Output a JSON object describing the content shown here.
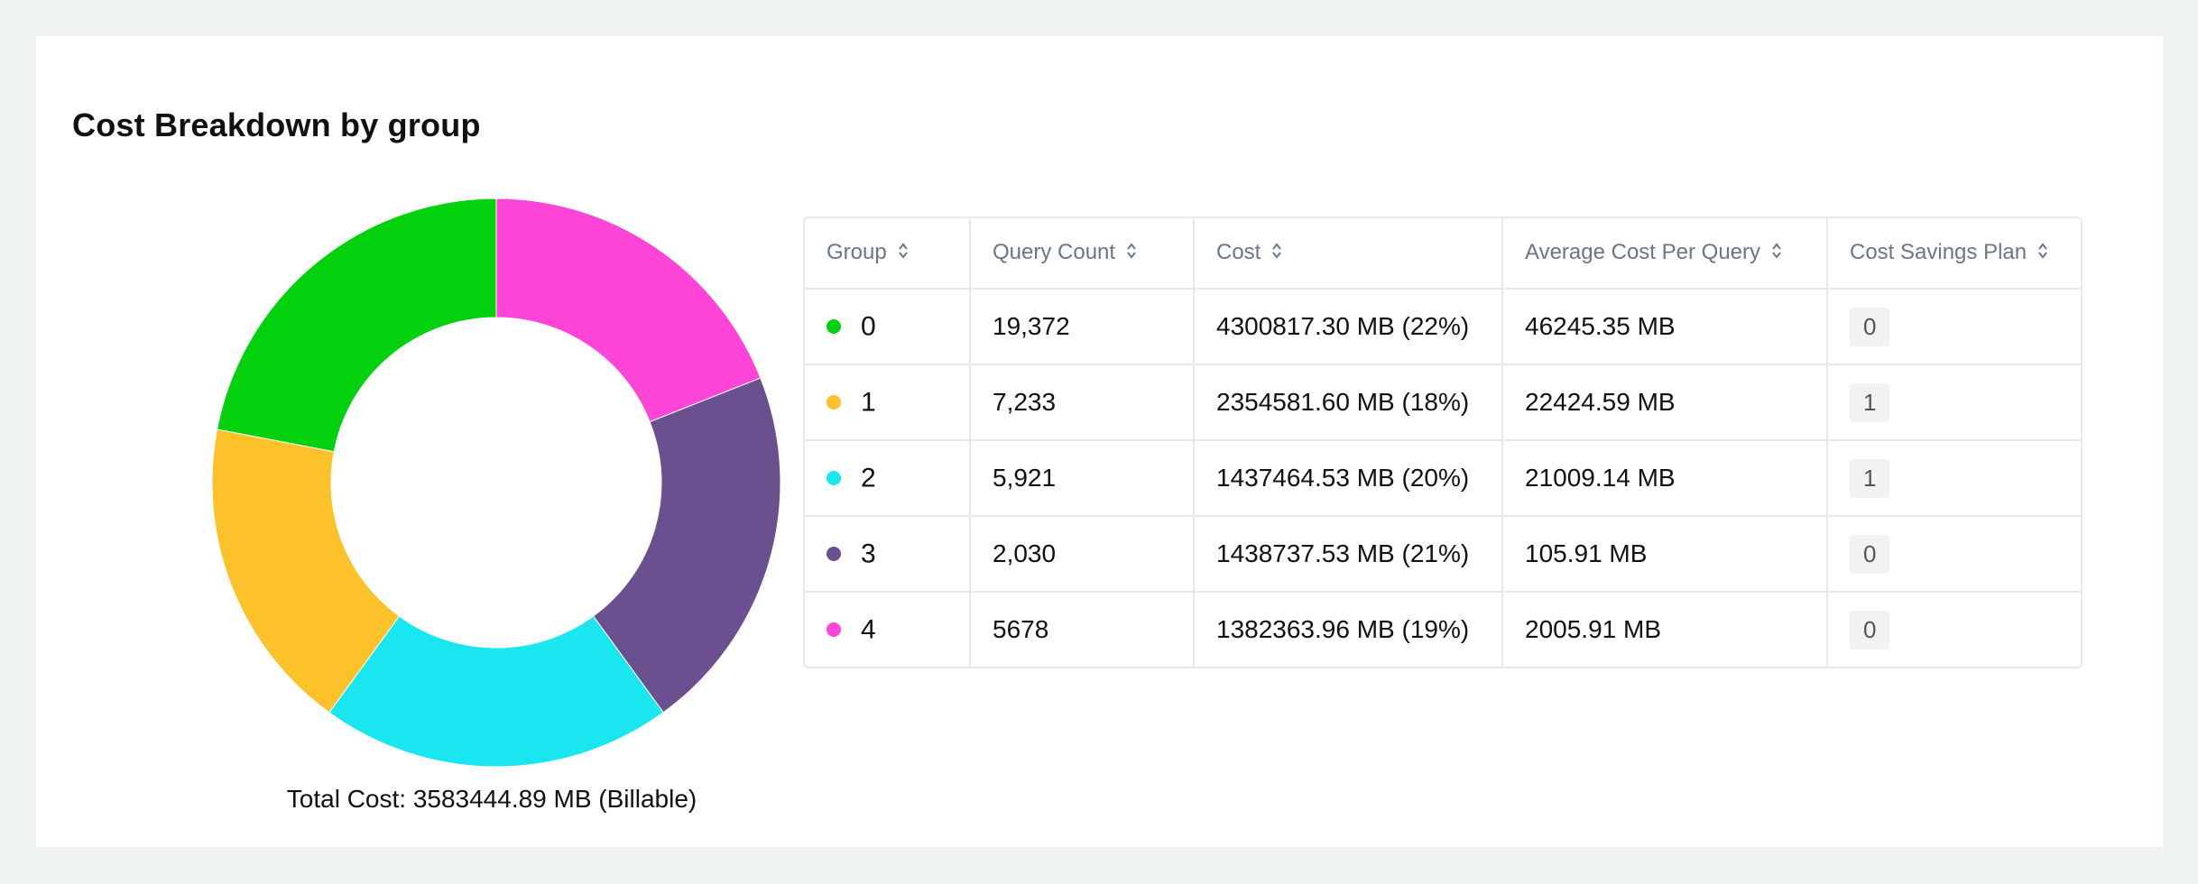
{
  "title": "Cost Breakdown by group",
  "total_cost": "Total Cost: 3583444.89 MB (Billable)",
  "chart_data": {
    "type": "pie",
    "style": "donut",
    "categories": [
      "0",
      "1",
      "2",
      "3",
      "4"
    ],
    "values": [
      22,
      18,
      20,
      21,
      19
    ],
    "colors": [
      "#04d10e",
      "#fdc12a",
      "#1ae6f0",
      "#6a508e",
      "#ff45d8"
    ]
  },
  "table": {
    "columns": [
      "Group",
      "Query Count",
      "Cost",
      "Average Cost Per Query",
      "Cost Savings Plan"
    ],
    "rows": [
      {
        "group": "0",
        "color": "#04d10e",
        "query_count": "19,372",
        "cost": "4300817.30 MB (22%)",
        "avg_cost": "46245.35 MB",
        "plan": "0"
      },
      {
        "group": "1",
        "color": "#fdc12a",
        "query_count": "7,233",
        "cost": "2354581.60 MB (18%)",
        "avg_cost": "22424.59 MB",
        "plan": "1"
      },
      {
        "group": "2",
        "color": "#1ae6f0",
        "query_count": "5,921",
        "cost": "1437464.53 MB (20%)",
        "avg_cost": "21009.14 MB",
        "plan": "1"
      },
      {
        "group": "3",
        "color": "#6a508e",
        "query_count": "2,030",
        "cost": "1438737.53 MB (21%)",
        "avg_cost": "105.91 MB",
        "plan": "0"
      },
      {
        "group": "4",
        "color": "#ff45d8",
        "query_count": "5678",
        "cost": "1382363.96 MB (19%)",
        "avg_cost": "2005.91 MB",
        "plan": "0"
      }
    ]
  }
}
